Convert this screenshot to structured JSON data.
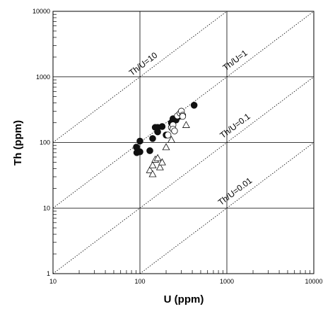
{
  "chart_data": {
    "type": "scatter",
    "xlabel": "U (ppm)",
    "ylabel": "Th (ppm)",
    "x_scale": "log",
    "y_scale": "log",
    "xlim": [
      10,
      10000
    ],
    "ylim": [
      1,
      10000
    ],
    "x_ticks": [
      "10",
      "100",
      "1000",
      "10000"
    ],
    "y_ticks": [
      "1",
      "10",
      "100",
      "1000",
      "10000"
    ],
    "grid": true,
    "reference_lines": [
      {
        "label": "Th/U=10",
        "ratio": 10
      },
      {
        "label": "Th/U=1",
        "ratio": 1
      },
      {
        "label": "Th/U=0.1",
        "ratio": 0.1
      },
      {
        "label": "Th/U=0.01",
        "ratio": 0.01
      }
    ],
    "series": [
      {
        "marker": "filled-circle",
        "points": [
          [
            91,
            85
          ],
          [
            92,
            70
          ],
          [
            100,
            72
          ],
          [
            100,
            105
          ],
          [
            130,
            75
          ],
          [
            140,
            115
          ],
          [
            150,
            170
          ],
          [
            160,
            170
          ],
          [
            160,
            145
          ],
          [
            180,
            175
          ],
          [
            200,
            130
          ],
          [
            230,
            200
          ],
          [
            240,
            230
          ],
          [
            260,
            220
          ],
          [
            280,
            250
          ],
          [
            300,
            255
          ],
          [
            420,
            370
          ]
        ]
      },
      {
        "marker": "open-circle",
        "points": [
          [
            210,
            130
          ],
          [
            230,
            170
          ],
          [
            240,
            185
          ],
          [
            240,
            160
          ],
          [
            270,
            255
          ],
          [
            290,
            280
          ],
          [
            300,
            300
          ],
          [
            310,
            260
          ],
          [
            250,
            150
          ],
          [
            310,
            250
          ]
        ]
      },
      {
        "marker": "open-triangle",
        "points": [
          [
            130,
            38
          ],
          [
            140,
            45
          ],
          [
            140,
            33
          ],
          [
            150,
            55
          ],
          [
            160,
            58
          ],
          [
            170,
            42
          ],
          [
            180,
            50
          ],
          [
            200,
            85
          ],
          [
            230,
            110
          ],
          [
            340,
            185
          ]
        ]
      }
    ]
  }
}
